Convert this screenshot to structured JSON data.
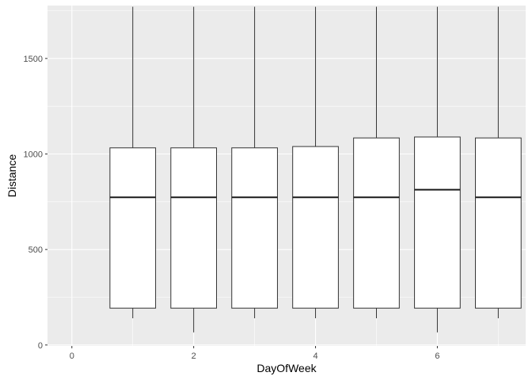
{
  "chart_data": {
    "type": "boxplot",
    "xlabel": "DayOfWeek",
    "ylabel": "Distance",
    "xlim": [
      -0.4,
      7.45
    ],
    "ylim": [
      -5,
      1777
    ],
    "x_ticks": [
      0,
      2,
      4,
      6
    ],
    "x_minor_ticks": [
      1,
      3,
      5,
      7
    ],
    "y_ticks": [
      0,
      500,
      1000,
      1500
    ],
    "y_minor_ticks": [
      250,
      750,
      1250,
      1750
    ],
    "box_width": 0.75,
    "grid": true,
    "colors": {
      "panel_background": "#ebebeb",
      "grid_major": "#ffffff",
      "box_fill": "#ffffff",
      "box_stroke": "#333333",
      "median": "#1a1a1a"
    },
    "boxes": [
      {
        "x": 1,
        "min": 140,
        "q1": 193,
        "median": 773,
        "q3": 1032,
        "max": 1771
      },
      {
        "x": 2,
        "min": 66,
        "q1": 193,
        "median": 773,
        "q3": 1032,
        "max": 1771
      },
      {
        "x": 3,
        "min": 140,
        "q1": 193,
        "median": 773,
        "q3": 1032,
        "max": 1771
      },
      {
        "x": 4,
        "min": 140,
        "q1": 193,
        "median": 773,
        "q3": 1039,
        "max": 1771
      },
      {
        "x": 5,
        "min": 140,
        "q1": 193,
        "median": 773,
        "q3": 1084,
        "max": 1771
      },
      {
        "x": 6,
        "min": 66,
        "q1": 193,
        "median": 813,
        "q3": 1089,
        "max": 1771
      },
      {
        "x": 7,
        "min": 140,
        "q1": 193,
        "median": 773,
        "q3": 1084,
        "max": 1771
      }
    ]
  }
}
